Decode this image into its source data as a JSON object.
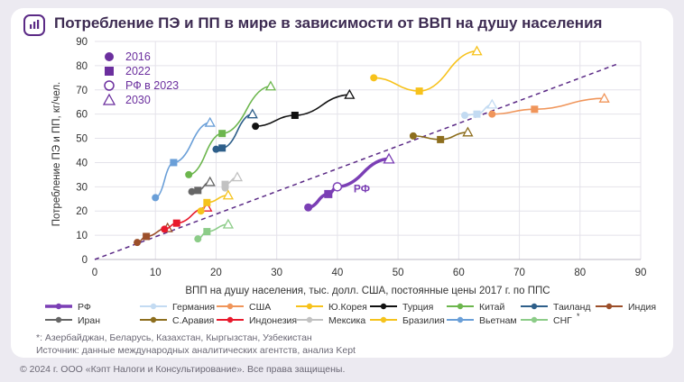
{
  "header": {
    "title": "Потребление ПЭ и ПП в мире в зависимости от ВВП на душу населения"
  },
  "chart_data": {
    "type": "scatter",
    "title": "Потребление ПЭ и ПП в мире в зависимости от ВВП на душу населения",
    "xlabel": "ВПП на душу населения, тыс. долл. США, постоянные цены 2017 г. по ППС",
    "ylabel": "Потребление ПЭ и ПП, кг/чел.",
    "xlim": [
      0,
      90
    ],
    "ylim": [
      0,
      90
    ],
    "xticks": [
      "0",
      "10",
      "20",
      "30",
      "40",
      "50",
      "60",
      "70",
      "80",
      "90"
    ],
    "yticks": [
      "0",
      "10",
      "20",
      "30",
      "40",
      "50",
      "60",
      "70",
      "80",
      "90"
    ],
    "marker_legend": [
      {
        "label": "2016",
        "marker": "circle"
      },
      {
        "label": "2022",
        "marker": "square"
      },
      {
        "label": "РФ в 2023",
        "marker": "circle-open"
      },
      {
        "label": "2030",
        "marker": "triangle-open"
      }
    ],
    "reference_line": {
      "style": "dashed",
      "color": "#5b2a86",
      "from": [
        0,
        0
      ],
      "to": [
        86.5,
        81
      ]
    },
    "annotation": "РФ",
    "series": [
      {
        "name": "РФ",
        "color": "#7b3fb5",
        "bold": true,
        "points": [
          [
            35.2,
            21.5
          ],
          [
            38.5,
            27
          ],
          [
            40,
            30
          ],
          [
            48.5,
            41.5
          ]
        ]
      },
      {
        "name": "Германия",
        "color": "#c3dbf2",
        "points": [
          [
            61,
            59.5
          ],
          [
            63,
            60
          ],
          [
            65.5,
            64
          ]
        ]
      },
      {
        "name": "США",
        "color": "#f0955a",
        "points": [
          [
            65.5,
            60
          ],
          [
            72.5,
            62
          ],
          [
            84,
            66.5
          ]
        ]
      },
      {
        "name": "Ю.Корея",
        "color": "#f7c21b",
        "points": [
          [
            46,
            75
          ],
          [
            53.5,
            69.5
          ],
          [
            63,
            86
          ]
        ]
      },
      {
        "name": "Турция",
        "color": "#111111",
        "points": [
          [
            26.5,
            55
          ],
          [
            33,
            59.5
          ],
          [
            42,
            68
          ]
        ]
      },
      {
        "name": "Китай",
        "color": "#6cb64d",
        "points": [
          [
            15.5,
            35
          ],
          [
            21,
            52
          ],
          [
            29,
            71.5
          ]
        ]
      },
      {
        "name": "Таиланд",
        "color": "#2e5f8a",
        "points": [
          [
            20,
            45.5
          ],
          [
            21,
            46
          ],
          [
            26,
            60
          ]
        ]
      },
      {
        "name": "Индия",
        "color": "#9c4f2a",
        "points": [
          [
            7,
            7
          ],
          [
            8.5,
            9.5
          ],
          [
            12,
            13
          ]
        ]
      },
      {
        "name": "Иран",
        "color": "#666666",
        "points": [
          [
            16,
            28
          ],
          [
            17,
            28.5
          ],
          [
            19,
            32
          ]
        ]
      },
      {
        "name": "С.Аравия",
        "color": "#8d6e1e",
        "points": [
          [
            52.5,
            51
          ],
          [
            57,
            49.5
          ],
          [
            61.5,
            52.5
          ]
        ]
      },
      {
        "name": "Индонезия",
        "color": "#e8192c",
        "points": [
          [
            11.5,
            12.5
          ],
          [
            13.5,
            15
          ],
          [
            18.5,
            21.5
          ]
        ]
      },
      {
        "name": "Мексика",
        "color": "#c2c2c2",
        "points": [
          [
            21.5,
            29.5
          ],
          [
            21.5,
            31
          ],
          [
            23.5,
            34
          ]
        ]
      },
      {
        "name": "Бразилия",
        "color": "#f5c31c",
        "points": [
          [
            17.5,
            20
          ],
          [
            18.5,
            23.5
          ],
          [
            22,
            26.5
          ]
        ]
      },
      {
        "name": "Вьетнам",
        "color": "#6a9fd8",
        "points": [
          [
            10,
            25.5
          ],
          [
            13,
            40
          ],
          [
            19,
            56.5
          ]
        ]
      },
      {
        "name": "СНГ",
        "color": "#8ccc88",
        "points": [
          [
            17,
            8.5
          ],
          [
            18.5,
            11.5
          ],
          [
            22,
            14.5
          ]
        ]
      }
    ],
    "series_legend_order": [
      "РФ",
      "Германия",
      "США",
      "Ю.Корея",
      "Турция",
      "Китай",
      "Таиланд",
      "Индия",
      "Иран",
      "С.Аравия",
      "Индонезия",
      "Мексика",
      "Бразилия",
      "Вьетнам",
      "СНГ"
    ],
    "legend_footnote_mark": "*"
  },
  "notes": {
    "footnote": "*: Азербайджан, Беларусь, Казахстан, Кыргызстан, Узбекистан",
    "source": "Источник: данные международных аналитических агентств, анализ Kept"
  },
  "copyright": "© 2024 г. ООО «Кэпт Налоги и Консультирование». Все права защищены."
}
